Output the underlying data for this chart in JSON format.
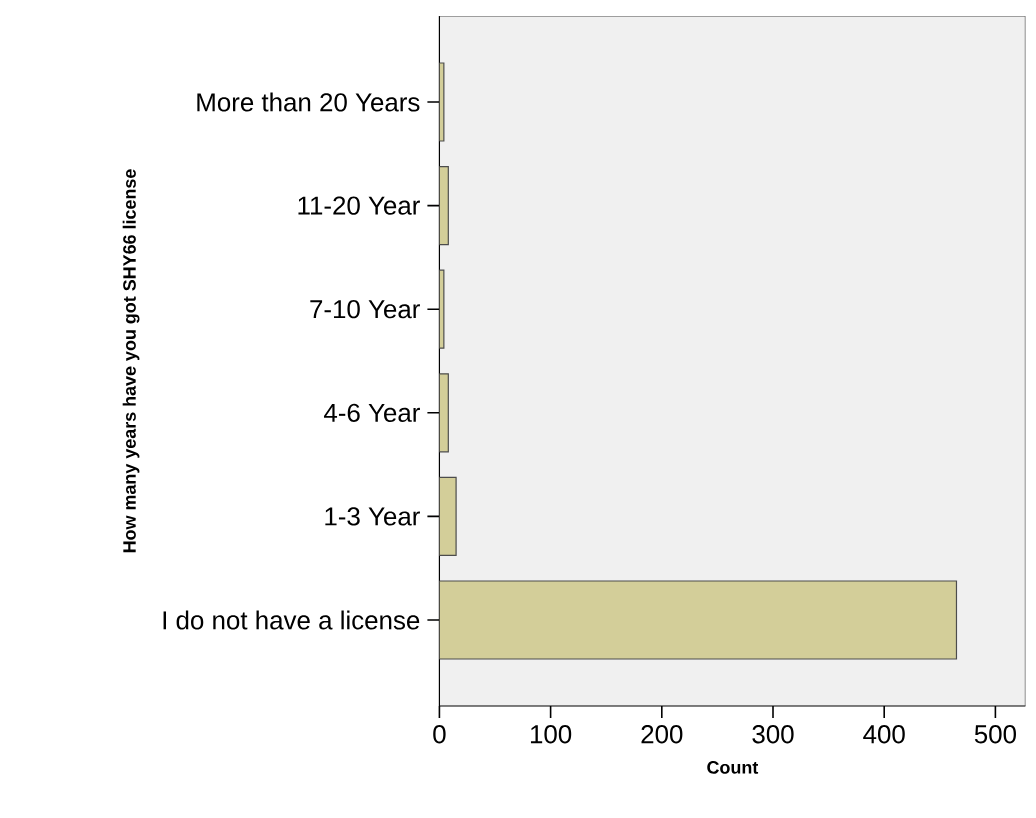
{
  "chart_data": {
    "type": "bar",
    "orientation": "horizontal",
    "xlabel": "Count",
    "ylabel": "How many years have you got SHY66 license",
    "categories": [
      "More than 20 Years",
      "11-20 Year",
      "7-10 Year",
      "4-6 Year",
      "1-3 Year",
      "I do not have a license"
    ],
    "values": [
      4,
      8,
      4,
      8,
      15,
      465
    ],
    "color": "#d3ce99",
    "xlim": [
      0,
      527
    ],
    "xticks": [
      0,
      100,
      200,
      300,
      400,
      500
    ]
  }
}
